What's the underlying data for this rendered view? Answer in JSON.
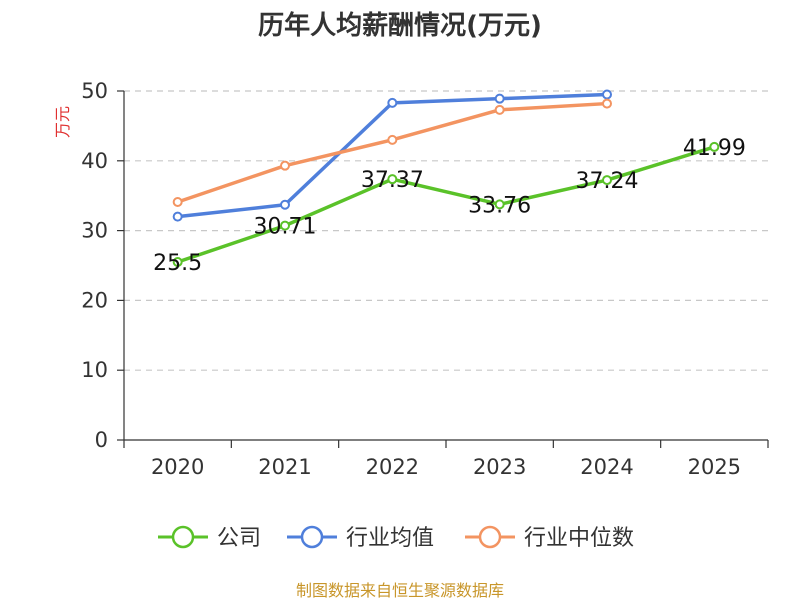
{
  "chart_data": {
    "type": "line",
    "title": "历年人均薪酬情况(万元)",
    "ylabel": "万元",
    "xlabel": "",
    "categories": [
      "2020",
      "2021",
      "2022",
      "2023",
      "2024",
      "2025"
    ],
    "ylim": [
      0,
      50
    ],
    "yticks": [
      0,
      10,
      20,
      30,
      40,
      50
    ],
    "grid": true,
    "legend_position": "bottom",
    "series": [
      {
        "name": "公司",
        "color": "#5ac229",
        "values": [
          25.5,
          30.71,
          37.37,
          33.76,
          37.24,
          41.99
        ],
        "labels": [
          "25.5",
          "30.71",
          "37.37",
          "33.76",
          "37.24",
          "41.99"
        ]
      },
      {
        "name": "行业均值",
        "color": "#4f7fdb",
        "values": [
          32.0,
          33.7,
          48.3,
          48.9,
          49.5,
          null
        ]
      },
      {
        "name": "行业中位数",
        "color": "#f39461",
        "values": [
          34.1,
          39.3,
          43.0,
          47.3,
          48.2,
          null
        ]
      }
    ],
    "ylabel_color": "#e03030",
    "source": "制图数据来自恒生聚源数据库",
    "source_color": "#c8962a"
  }
}
